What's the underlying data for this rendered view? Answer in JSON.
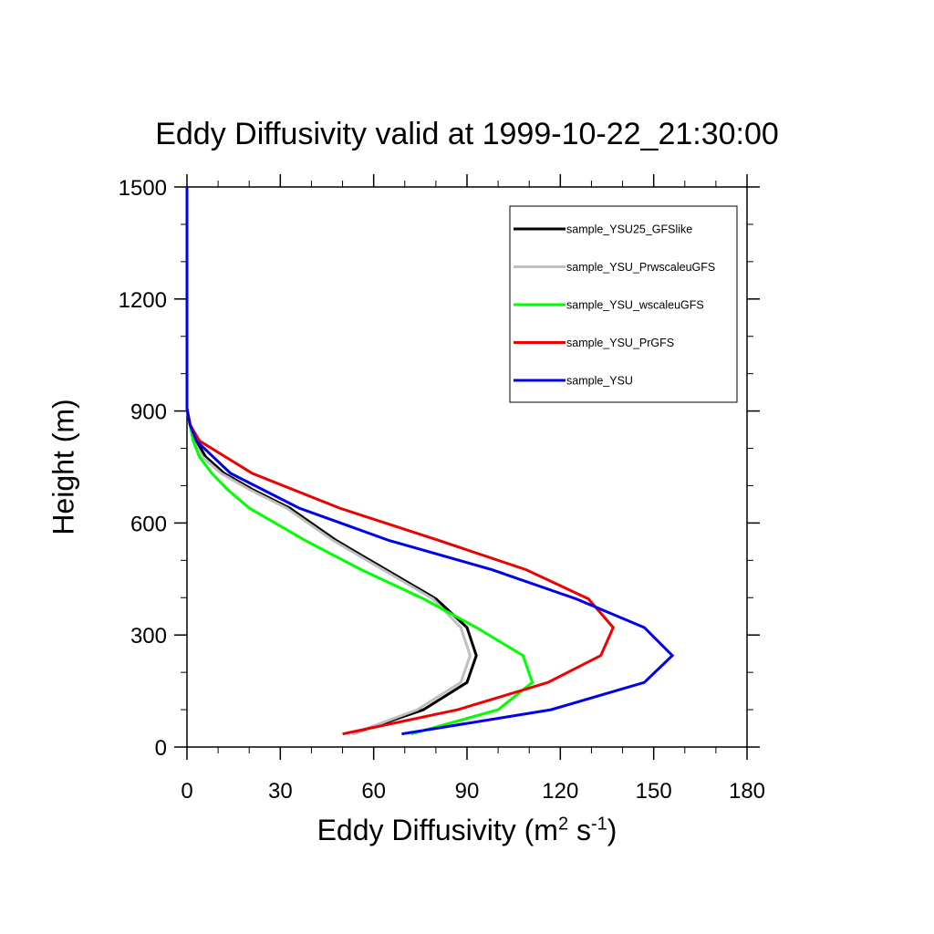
{
  "chart_data": {
    "type": "line",
    "title": "Eddy Diffusivity valid at 1999-10-22_21:30:00",
    "xlabel": "Eddy Diffusivity (m2 s-1)",
    "xlabel_parts": {
      "main": "Eddy Diffusivity (m",
      "exp1": "2",
      "mid": " s",
      "exp2": "-1",
      "end": ")"
    },
    "ylabel": "Height (m)",
    "xlim": [
      0,
      180
    ],
    "ylim": [
      0,
      1500
    ],
    "xticks": [
      0,
      30,
      60,
      90,
      120,
      150,
      180
    ],
    "yticks": [
      0,
      300,
      600,
      900,
      1200,
      1500
    ],
    "legend_position": "top-right",
    "series": [
      {
        "name": "sample_YSU25_GFSlike",
        "color": "#000000",
        "points": [
          [
            53,
            35
          ],
          [
            76,
            100
          ],
          [
            90,
            173
          ],
          [
            93,
            245
          ],
          [
            90,
            320
          ],
          [
            80,
            397
          ],
          [
            64,
            475
          ],
          [
            48,
            553
          ],
          [
            33,
            640
          ],
          [
            21,
            690
          ],
          [
            12,
            733
          ],
          [
            6,
            777
          ],
          [
            3,
            820
          ],
          [
            1,
            863
          ],
          [
            0,
            906
          ],
          [
            0,
            950
          ],
          [
            0,
            1000
          ],
          [
            0,
            1500
          ]
        ]
      },
      {
        "name": "sample_YSU_PrwscaleuGFS",
        "color": "#bfbfbf",
        "points": [
          [
            53,
            35
          ],
          [
            74,
            100
          ],
          [
            88,
            173
          ],
          [
            91,
            245
          ],
          [
            88,
            320
          ],
          [
            79,
            397
          ],
          [
            63,
            475
          ],
          [
            47,
            553
          ],
          [
            32,
            640
          ],
          [
            20,
            690
          ],
          [
            11,
            733
          ],
          [
            5,
            777
          ],
          [
            2,
            820
          ],
          [
            1,
            863
          ],
          [
            0,
            906
          ],
          [
            0,
            950
          ],
          [
            0,
            1000
          ],
          [
            0,
            1500
          ]
        ]
      },
      {
        "name": "sample_YSU_wscaleuGFS",
        "color": "#00ff00",
        "points": [
          [
            72,
            35
          ],
          [
            100,
            100
          ],
          [
            111,
            173
          ],
          [
            108,
            245
          ],
          [
            93,
            320
          ],
          [
            76,
            397
          ],
          [
            56,
            475
          ],
          [
            38,
            553
          ],
          [
            20,
            640
          ],
          [
            13,
            690
          ],
          [
            8,
            733
          ],
          [
            4,
            777
          ],
          [
            2,
            820
          ],
          [
            1,
            863
          ],
          [
            0,
            906
          ],
          [
            0,
            950
          ],
          [
            0,
            1000
          ],
          [
            0,
            1500
          ]
        ]
      },
      {
        "name": "sample_YSU_PrGFS",
        "color": "#ee0000",
        "points": [
          [
            50,
            35
          ],
          [
            87,
            100
          ],
          [
            116,
            173
          ],
          [
            133,
            245
          ],
          [
            137,
            320
          ],
          [
            129,
            397
          ],
          [
            109,
            475
          ],
          [
            81,
            553
          ],
          [
            49,
            640
          ],
          [
            21,
            733
          ],
          [
            4,
            820
          ],
          [
            1,
            863
          ],
          [
            0,
            906
          ],
          [
            0,
            950
          ],
          [
            0,
            1000
          ],
          [
            0,
            1500
          ]
        ]
      },
      {
        "name": "sample_YSU",
        "color": "#0000ee",
        "points": [
          [
            69,
            35
          ],
          [
            117,
            100
          ],
          [
            147,
            173
          ],
          [
            156,
            245
          ],
          [
            147,
            320
          ],
          [
            125,
            397
          ],
          [
            98,
            475
          ],
          [
            65,
            553
          ],
          [
            36,
            640
          ],
          [
            14,
            733
          ],
          [
            3,
            820
          ],
          [
            1,
            863
          ],
          [
            0,
            906
          ],
          [
            0,
            950
          ],
          [
            0,
            1000
          ],
          [
            0,
            1500
          ]
        ]
      }
    ]
  }
}
